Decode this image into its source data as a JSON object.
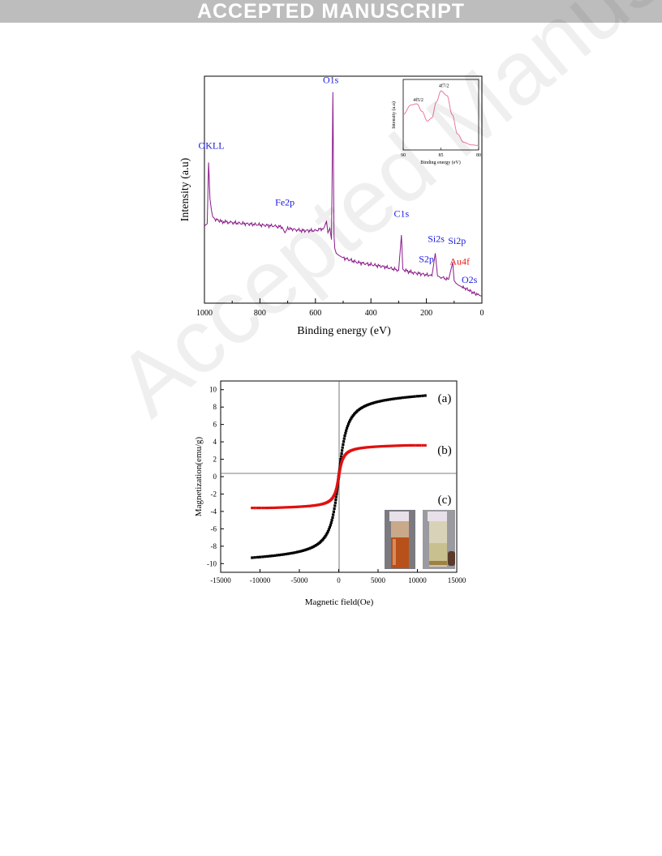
{
  "header": {
    "banner": "ACCEPTED MANUSCRIPT"
  },
  "watermark": "Accepted Manuscript",
  "chart_data": [
    {
      "type": "line",
      "title": "",
      "xlabel": "Binding energy (eV)",
      "ylabel": "Intensity (a.u)",
      "xlim": [
        1000,
        0
      ],
      "xticks": [
        "1000",
        "800",
        "600",
        "400",
        "200",
        "0"
      ],
      "x_reversed": true,
      "series": [
        {
          "x": [
            1000,
            990,
            985,
            980,
            975,
            970,
            960,
            940,
            900,
            850,
            800,
            750,
            720,
            710,
            700,
            680,
            650,
            600,
            570,
            560,
            555,
            548,
            542,
            537,
            533,
            530,
            525,
            515,
            500,
            450,
            400,
            350,
            300,
            290,
            285,
            280,
            250,
            200,
            180,
            168,
            160,
            150,
            120,
            105,
            100,
            95,
            85,
            70,
            50,
            30,
            10,
            0
          ],
          "y": [
            34,
            35,
            62,
            46,
            41,
            38,
            37,
            36,
            35.5,
            35,
            34.5,
            34,
            33.5,
            31,
            33,
            32.5,
            32,
            32,
            33,
            36,
            31,
            33,
            28,
            93,
            30,
            24,
            22,
            21,
            20,
            18,
            17,
            16,
            14.5,
            30,
            15,
            14.5,
            13.5,
            12.5,
            12,
            22,
            12,
            11.5,
            10.5,
            18,
            10,
            9,
            8,
            7,
            6,
            4.5,
            3.5,
            3
          ]
        }
      ],
      "annotations": [
        {
          "text": "OKLL",
          "x": 975,
          "y": 68,
          "color": "#1a1ae0"
        },
        {
          "text": "O1s",
          "x": 545,
          "y": 97,
          "color": "#1a1ae0"
        },
        {
          "text": "Fe2p",
          "x": 710,
          "y": 43,
          "color": "#1a1ae0"
        },
        {
          "text": "C1s",
          "x": 290,
          "y": 38,
          "color": "#1a1ae0"
        },
        {
          "text": "Si2s",
          "x": 165,
          "y": 27,
          "color": "#1a1ae0"
        },
        {
          "text": "S2p",
          "x": 200,
          "y": 18,
          "color": "#1a1ae0"
        },
        {
          "text": "Si2p",
          "x": 90,
          "y": 26,
          "color": "#1a1ae0"
        },
        {
          "text": "Au4f",
          "x": 80,
          "y": 17,
          "color": "#e82020"
        },
        {
          "text": "O2s",
          "x": 45,
          "y": 9,
          "color": "#1a1ae0"
        }
      ],
      "line_color": "#8a1a8a"
    },
    {
      "type": "line",
      "title": "",
      "xlabel": "Binding energy (eV)",
      "ylabel": "Intensity (a.u)",
      "xlim": [
        90,
        80
      ],
      "xticks": [
        "90",
        "85",
        "80"
      ],
      "x_reversed": true,
      "series": [
        {
          "x": [
            90,
            89,
            88.2,
            87.5,
            86.8,
            86.2,
            85.6,
            85,
            84.2,
            83.5,
            82.8,
            82,
            81,
            80
          ],
          "y": [
            55,
            70,
            72,
            60,
            45,
            50,
            75,
            92,
            85,
            55,
            25,
            12,
            8,
            7
          ]
        }
      ],
      "annotations": [
        {
          "text": "4f5/2",
          "x": 88,
          "y": 76
        },
        {
          "text": "4f7/2",
          "x": 84.6,
          "y": 98
        }
      ],
      "line_color": "#e87a9a",
      "inset": true
    },
    {
      "type": "scatter",
      "title": "",
      "xlabel": "Magnetic field(Oe)",
      "ylabel": "Magnetization(emu/g)",
      "xlim": [
        -15000,
        15000
      ],
      "ylim": [
        -11,
        11
      ],
      "xticks": [
        "-15000",
        "-10000",
        "-5000",
        "0",
        "5000",
        "10000",
        "15000"
      ],
      "yticks": [
        "-10",
        "-8",
        "-6",
        "-4",
        "-2",
        "0",
        "2",
        "4",
        "6",
        "8",
        "10"
      ],
      "series": [
        {
          "name": "(a)",
          "color": "#000000",
          "ms": 9.4,
          "h0": 900
        },
        {
          "name": "(b)",
          "color": "#e01010",
          "ms": 3.6,
          "h0": 500
        }
      ],
      "x_range": [
        -11000,
        11000
      ],
      "labels": [
        "(a)",
        "(b)",
        "(c)"
      ]
    }
  ]
}
